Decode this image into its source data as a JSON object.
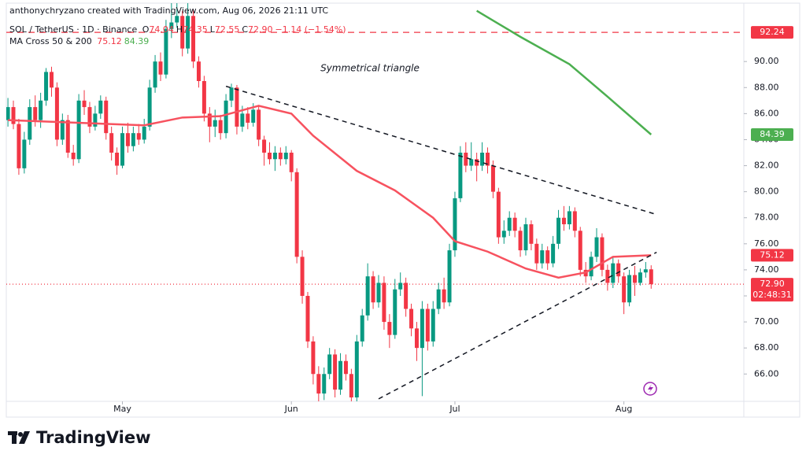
{
  "header": {
    "author_line": "anthonychryzano created with TradingView.com, Aug 06, 2026 21:11 UTC"
  },
  "legend": {
    "symbol": "SOL / TetherUS · 1D · Binance",
    "ohlc": [
      {
        "label": "O",
        "value": "74.04"
      },
      {
        "label": "H",
        "value": "74.35"
      },
      {
        "label": "L",
        "value": "72.55"
      },
      {
        "label": "C",
        "value": "72.90"
      }
    ],
    "change": "−1.14 (−1.54%)",
    "indicator": "MA Cross 50 & 200",
    "indicator_values": [
      "75.12",
      "84.39"
    ]
  },
  "footer": {
    "brand": "TradingView"
  },
  "chart_data": {
    "type": "candlestick",
    "annotation": "Symmetrical triangle",
    "xlim": [
      -0.3,
      135
    ],
    "ylim": [
      63.9,
      94
    ],
    "xticks": [
      {
        "value": 21,
        "label": "May"
      },
      {
        "value": 52,
        "label": "Jun"
      },
      {
        "value": 82,
        "label": "Jul"
      },
      {
        "value": 113,
        "label": "Aug"
      }
    ],
    "yticks": [
      {
        "value": 66,
        "label": "66.00"
      },
      {
        "value": 68,
        "label": "68.00"
      },
      {
        "value": 70,
        "label": "70.00"
      },
      {
        "value": 72,
        "label": "72.00"
      },
      {
        "value": 74,
        "label": "74.00"
      },
      {
        "value": 76,
        "label": "76.00"
      },
      {
        "value": 78,
        "label": "78.00"
      },
      {
        "value": 80,
        "label": "80.00"
      },
      {
        "value": 82,
        "label": "82.00"
      },
      {
        "value": 84,
        "label": "84.00"
      },
      {
        "value": 86,
        "label": "86.00"
      },
      {
        "value": 88,
        "label": "88.00"
      },
      {
        "value": 90,
        "label": "90.00"
      }
    ],
    "up_color": "#089981",
    "down_color": "#f23645",
    "series": [
      {
        "name": "SOL / TetherUS",
        "values": [
          [
            85.5,
            87.2,
            85.0,
            86.5
          ],
          [
            86.5,
            87.0,
            84.8,
            85.2
          ],
          [
            85.2,
            85.6,
            81.3,
            81.8
          ],
          [
            81.8,
            84.6,
            81.4,
            84.0
          ],
          [
            84.0,
            87.1,
            83.6,
            86.5
          ],
          [
            86.5,
            87.4,
            85.0,
            85.5
          ],
          [
            85.5,
            87.6,
            84.9,
            87.0
          ],
          [
            87.0,
            89.5,
            86.6,
            89.2
          ],
          [
            89.2,
            89.6,
            87.3,
            88.0
          ],
          [
            88.0,
            88.4,
            83.5,
            84.0
          ],
          [
            84.0,
            86.0,
            83.6,
            85.5
          ],
          [
            85.5,
            85.9,
            82.6,
            83.0
          ],
          [
            83.0,
            83.6,
            82.0,
            82.5
          ],
          [
            82.5,
            87.5,
            82.2,
            87.0
          ],
          [
            87.0,
            87.8,
            85.9,
            86.5
          ],
          [
            86.5,
            86.9,
            84.5,
            85.0
          ],
          [
            85.0,
            86.6,
            84.7,
            86.0
          ],
          [
            86.0,
            87.4,
            85.6,
            87.0
          ],
          [
            87.0,
            87.3,
            84.0,
            84.5
          ],
          [
            84.5,
            85.0,
            82.4,
            83.0
          ],
          [
            83.0,
            83.4,
            81.3,
            82.0
          ],
          [
            82.0,
            85.0,
            81.8,
            84.5
          ],
          [
            84.5,
            85.3,
            83.0,
            83.5
          ],
          [
            83.5,
            85.0,
            83.1,
            84.5
          ],
          [
            84.5,
            85.2,
            83.6,
            84.0
          ],
          [
            84.0,
            85.6,
            83.7,
            85.0
          ],
          [
            85.0,
            88.6,
            84.7,
            88.0
          ],
          [
            88.0,
            90.5,
            87.6,
            90.0
          ],
          [
            90.0,
            90.7,
            88.5,
            89.0
          ],
          [
            89.0,
            93.2,
            88.7,
            92.5
          ],
          [
            92.5,
            94.5,
            91.8,
            93.0
          ],
          [
            93.0,
            95.0,
            92.6,
            93.5
          ],
          [
            93.5,
            93.9,
            90.4,
            91.0
          ],
          [
            91.0,
            94.6,
            90.6,
            93.5
          ],
          [
            93.5,
            94.0,
            89.5,
            90.0
          ],
          [
            90.0,
            90.4,
            88.0,
            88.5
          ],
          [
            88.5,
            88.9,
            85.4,
            86.0
          ],
          [
            86.0,
            86.5,
            83.8,
            85.0
          ],
          [
            85.0,
            86.3,
            84.2,
            85.5
          ],
          [
            85.5,
            85.9,
            84.0,
            84.5
          ],
          [
            84.5,
            87.5,
            84.1,
            87.0
          ],
          [
            87.0,
            88.3,
            86.5,
            88.0
          ],
          [
            88.0,
            88.2,
            84.4,
            85.0
          ],
          [
            85.0,
            86.6,
            84.6,
            86.0
          ],
          [
            86.0,
            86.5,
            84.8,
            85.3
          ],
          [
            85.3,
            86.8,
            85.0,
            86.3
          ],
          [
            86.3,
            86.6,
            83.5,
            84.0
          ],
          [
            84.0,
            84.3,
            82.0,
            83.0
          ],
          [
            83.0,
            83.8,
            82.1,
            82.5
          ],
          [
            82.5,
            83.5,
            81.6,
            83.0
          ],
          [
            83.0,
            83.4,
            82.0,
            82.5
          ],
          [
            82.5,
            83.5,
            82.1,
            83.0
          ],
          [
            83.0,
            83.2,
            80.8,
            81.5
          ],
          [
            81.5,
            81.8,
            74.5,
            75.0
          ],
          [
            75.0,
            75.5,
            71.4,
            72.0
          ],
          [
            72.0,
            72.3,
            68.0,
            68.5
          ],
          [
            68.5,
            68.9,
            65.2,
            66.0
          ],
          [
            66.0,
            66.6,
            63.5,
            64.5
          ],
          [
            64.5,
            66.5,
            64.0,
            66.0
          ],
          [
            66.0,
            68.0,
            65.6,
            67.5
          ],
          [
            67.5,
            67.9,
            64.2,
            64.8
          ],
          [
            64.8,
            67.6,
            64.4,
            67.0
          ],
          [
            67.0,
            67.5,
            65.5,
            66.0
          ],
          [
            66.0,
            66.4,
            63.5,
            64.2
          ],
          [
            64.2,
            69.0,
            63.9,
            68.5
          ],
          [
            68.5,
            71.0,
            68.1,
            70.5
          ],
          [
            70.5,
            74.5,
            70.1,
            73.5
          ],
          [
            73.5,
            73.9,
            71.0,
            71.5
          ],
          [
            71.5,
            73.6,
            71.1,
            73.0
          ],
          [
            73.0,
            73.5,
            69.4,
            70.0
          ],
          [
            70.0,
            70.6,
            68.0,
            69.0
          ],
          [
            69.0,
            73.3,
            68.7,
            72.5
          ],
          [
            72.5,
            73.8,
            72.0,
            73.0
          ],
          [
            73.0,
            73.4,
            70.4,
            71.0
          ],
          [
            71.0,
            71.4,
            68.9,
            69.5
          ],
          [
            69.5,
            70.0,
            67.0,
            68.0
          ],
          [
            68.0,
            71.6,
            64.3,
            71.0
          ],
          [
            71.0,
            71.4,
            67.8,
            68.5
          ],
          [
            68.5,
            71.6,
            68.1,
            71.0
          ],
          [
            71.0,
            73.0,
            70.6,
            72.5
          ],
          [
            72.5,
            73.4,
            71.0,
            71.5
          ],
          [
            71.5,
            76.0,
            71.2,
            75.5
          ],
          [
            75.5,
            80.0,
            75.0,
            79.5
          ],
          [
            79.5,
            83.5,
            79.2,
            83.0
          ],
          [
            83.0,
            83.8,
            81.5,
            82.0
          ],
          [
            82.0,
            83.8,
            81.6,
            82.5
          ],
          [
            82.5,
            83.0,
            80.8,
            82.0
          ],
          [
            82.0,
            83.8,
            81.6,
            83.0
          ],
          [
            83.0,
            83.4,
            81.4,
            82.0
          ],
          [
            82.0,
            82.4,
            79.5,
            80.0
          ],
          [
            80.0,
            80.3,
            76.0,
            76.5
          ],
          [
            76.5,
            77.8,
            76.0,
            77.0
          ],
          [
            77.0,
            78.5,
            76.6,
            78.0
          ],
          [
            78.0,
            78.4,
            76.5,
            77.0
          ],
          [
            77.0,
            77.3,
            75.0,
            75.5
          ],
          [
            75.5,
            78.0,
            75.1,
            77.5
          ],
          [
            77.5,
            77.8,
            75.5,
            76.0
          ],
          [
            76.0,
            76.4,
            74.0,
            74.5
          ],
          [
            74.5,
            76.0,
            74.1,
            75.5
          ],
          [
            75.5,
            75.8,
            74.0,
            74.5
          ],
          [
            74.5,
            76.6,
            74.2,
            76.0
          ],
          [
            76.0,
            78.6,
            75.6,
            78.0
          ],
          [
            78.0,
            78.9,
            77.0,
            77.5
          ],
          [
            77.5,
            78.9,
            77.1,
            78.5
          ],
          [
            78.5,
            78.8,
            76.5,
            77.0
          ],
          [
            77.0,
            77.3,
            73.5,
            74.0
          ],
          [
            74.0,
            74.6,
            73.0,
            73.5
          ],
          [
            73.5,
            75.4,
            73.2,
            75.0
          ],
          [
            75.0,
            77.2,
            74.6,
            76.5
          ],
          [
            76.5,
            76.8,
            73.5,
            74.0
          ],
          [
            74.0,
            74.4,
            72.4,
            73.0
          ],
          [
            73.0,
            75.0,
            72.6,
            74.5
          ],
          [
            74.5,
            74.8,
            73.0,
            73.5
          ],
          [
            73.5,
            73.8,
            70.6,
            71.5
          ],
          [
            71.5,
            74.0,
            71.2,
            73.6
          ],
          [
            73.6,
            74.3,
            72.0,
            73.0
          ],
          [
            73.0,
            74.1,
            72.8,
            73.8
          ],
          [
            73.8,
            74.6,
            73.4,
            74.04
          ],
          [
            74.04,
            74.35,
            72.55,
            72.9
          ]
        ]
      }
    ],
    "lines": [
      {
        "name": "MA 50",
        "color": "#f7525f",
        "width": 2.5,
        "dash": "none",
        "x": [
          0,
          25,
          32,
          39,
          46,
          52,
          56,
          64,
          71,
          78,
          82,
          88,
          95,
          101,
          106,
          111,
          118
        ],
        "values": [
          85.5,
          85.1,
          85.7,
          85.8,
          86.6,
          86.0,
          84.3,
          81.6,
          80.1,
          78.0,
          76.2,
          75.4,
          74.1,
          73.4,
          73.8,
          75.0,
          75.12
        ]
      },
      {
        "name": "MA 200",
        "color": "#4caf50",
        "width": 2.5,
        "dash": "none",
        "x": [
          86,
          94,
          103,
          110,
          118
        ],
        "values": [
          93.9,
          91.9,
          89.8,
          87.3,
          84.39
        ]
      },
      {
        "name": "Upper trendline",
        "color": "#131722",
        "width": 1.5,
        "dash": "6 5",
        "x": [
          40,
          119
        ],
        "values": [
          88.1,
          78.25
        ]
      },
      {
        "name": "Lower trendline",
        "color": "#131722",
        "width": 1.5,
        "dash": "6 5",
        "x": [
          68,
          119
        ],
        "values": [
          64.09,
          75.35
        ]
      }
    ],
    "price_labels": [
      {
        "value": 92.24,
        "label": "92.24",
        "color": "#f23645",
        "line": "8 6"
      },
      {
        "value": 84.39,
        "label": "84.39",
        "color": "#4caf50"
      },
      {
        "value": 75.12,
        "label": "75.12",
        "color": "#f23645"
      },
      {
        "value": 72.9,
        "label": "72.90",
        "color": "#f23645",
        "line": "1 3",
        "countdown": "02:48:31"
      }
    ]
  }
}
